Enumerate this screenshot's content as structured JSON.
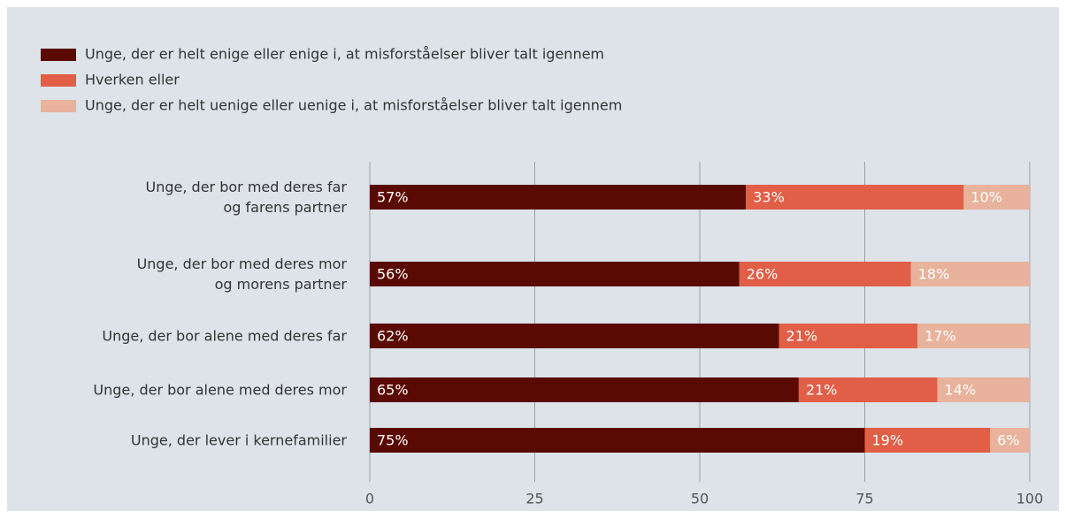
{
  "chart_data": {
    "type": "stacked-bar-horizontal",
    "categories": [
      "Unge, der bor med deres far\nog farens partner",
      "Unge, der bor med deres mor\nog morens partner",
      "Unge, der bor alene med deres far",
      "Unge, der bor alene med deres mor",
      "Unge, der lever i kernefamilier"
    ],
    "series": [
      {
        "name": "Unge, der er helt enige eller enige i, at misforståelser bliver talt igennem",
        "color": "#5a0a02",
        "values": [
          57,
          56,
          62,
          65,
          75
        ],
        "value_labels": [
          "57%",
          "56%",
          "62%",
          "65%",
          "75%"
        ]
      },
      {
        "name": "Hverken eller",
        "color": "#e15e47",
        "values": [
          33,
          26,
          21,
          21,
          19
        ],
        "value_labels": [
          "33%",
          "26%",
          "21%",
          "21%",
          "19%"
        ]
      },
      {
        "name": "Unge, der er helt uenige eller uenige i, at misforståelser bliver talt igennem",
        "color": "#e8b29c",
        "values": [
          10,
          18,
          17,
          14,
          6
        ],
        "value_labels": [
          "10%",
          "18%",
          "17%",
          "14%",
          "6%"
        ]
      }
    ],
    "xlim": [
      0,
      100
    ],
    "xticks": [
      0,
      25,
      50,
      75,
      100
    ],
    "grid": true
  }
}
